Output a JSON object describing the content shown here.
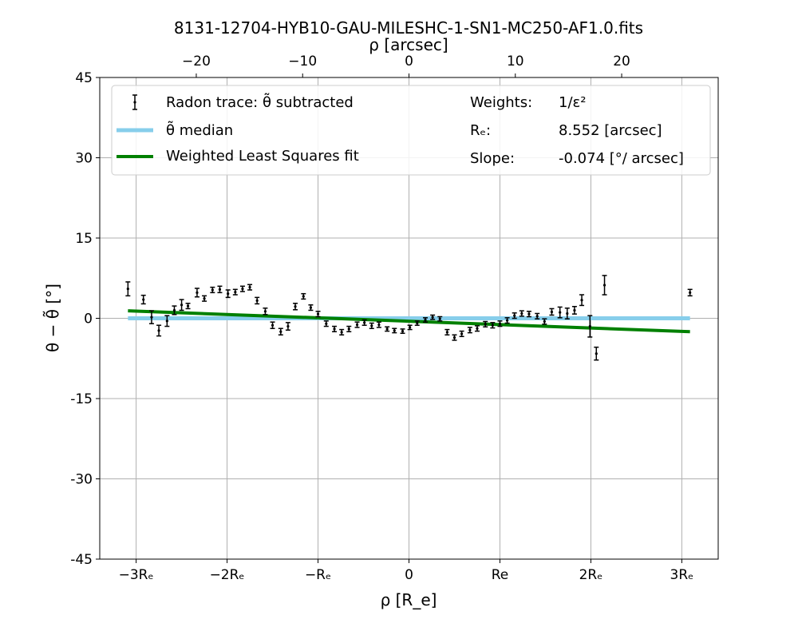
{
  "chart_data": {
    "type": "scatter",
    "title": "8131-12704-HYB10-GAU-MILESHC-1-SN1-MC250-AF1.0.fits",
    "xlabel": "ρ [R_e]",
    "xlabel_top": "ρ [arcsec]",
    "ylabel": "θ − θ̃ [°]",
    "xlim": [
      -3.4,
      3.4
    ],
    "ylim": [
      -45,
      45
    ],
    "y_ticks": [
      45,
      30,
      15,
      0,
      -15,
      -30,
      -45
    ],
    "y_tick_labels": [
      "45",
      "30",
      "15",
      "0",
      "-15",
      "-30",
      "-45"
    ],
    "x_ticks": [
      -3,
      -2,
      -1,
      0,
      1,
      2,
      3
    ],
    "x_tick_labels": [
      "−3Rₑ",
      "−2Rₑ",
      "−Rₑ",
      "0",
      "Re",
      "2Rₑ",
      "3Rₑ"
    ],
    "x_top_ticks_arcsec": [
      -20,
      -10,
      0,
      10,
      20
    ],
    "x_top_tick_labels": [
      "−20",
      "−10",
      "0",
      "10",
      "20"
    ],
    "grid": true,
    "legend_placement": "top",
    "legend": {
      "trace_label": "Radon trace: θ̃ subtracted",
      "median_label": "θ̃ median",
      "fit_label": "Weighted Least Squares fit",
      "weights_label": "Weights:",
      "weights_value": "1/ε²",
      "re_label": "Rₑ:",
      "re_value": "8.552 [arcsec]",
      "slope_label": "Slope:",
      "slope_value": "-0.074 [°/ arcsec]"
    },
    "colors": {
      "points": "#000000",
      "median": "#87ceeb",
      "fit": "#008000",
      "grid": "#b0b0b0"
    },
    "re_arcsec": 8.552,
    "median": {
      "x_range": [
        -3.09,
        3.09
      ],
      "y": 0
    },
    "fit": {
      "x_range": [
        -3.09,
        3.09
      ],
      "y": [
        1.4,
        -2.5
      ]
    },
    "series": [
      {
        "name": "Radon trace: θ̃ subtracted",
        "points": [
          {
            "x": -3.09,
            "y": 5.5,
            "err": 1.3
          },
          {
            "x": -2.92,
            "y": 3.5,
            "err": 0.8
          },
          {
            "x": -2.83,
            "y": 0.2,
            "err": 1.2
          },
          {
            "x": -2.75,
            "y": -2.3,
            "err": 1.0
          },
          {
            "x": -2.66,
            "y": -0.5,
            "err": 1.0
          },
          {
            "x": -2.58,
            "y": 1.5,
            "err": 0.8
          },
          {
            "x": -2.5,
            "y": 2.5,
            "err": 1.0
          },
          {
            "x": -2.43,
            "y": 2.3,
            "err": 0.5
          },
          {
            "x": -2.33,
            "y": 4.8,
            "err": 0.8
          },
          {
            "x": -2.25,
            "y": 3.7,
            "err": 0.5
          },
          {
            "x": -2.16,
            "y": 5.3,
            "err": 0.5
          },
          {
            "x": -2.08,
            "y": 5.4,
            "err": 0.6
          },
          {
            "x": -1.99,
            "y": 4.6,
            "err": 0.7
          },
          {
            "x": -1.91,
            "y": 4.9,
            "err": 0.5
          },
          {
            "x": -1.83,
            "y": 5.5,
            "err": 0.5
          },
          {
            "x": -1.75,
            "y": 5.8,
            "err": 0.5
          },
          {
            "x": -1.67,
            "y": 3.3,
            "err": 0.6
          },
          {
            "x": -1.58,
            "y": 1.3,
            "err": 0.6
          },
          {
            "x": -1.5,
            "y": -1.3,
            "err": 0.6
          },
          {
            "x": -1.41,
            "y": -2.5,
            "err": 0.6
          },
          {
            "x": -1.33,
            "y": -1.5,
            "err": 0.7
          },
          {
            "x": -1.25,
            "y": 2.2,
            "err": 0.6
          },
          {
            "x": -1.16,
            "y": 4.1,
            "err": 0.5
          },
          {
            "x": -1.08,
            "y": 2.0,
            "err": 0.5
          },
          {
            "x": -1.0,
            "y": 0.8,
            "err": 0.5
          },
          {
            "x": -0.91,
            "y": -1.0,
            "err": 0.5
          },
          {
            "x": -0.82,
            "y": -2.0,
            "err": 0.5
          },
          {
            "x": -0.74,
            "y": -2.6,
            "err": 0.5
          },
          {
            "x": -0.66,
            "y": -2.0,
            "err": 0.5
          },
          {
            "x": -0.57,
            "y": -1.2,
            "err": 0.5
          },
          {
            "x": -0.49,
            "y": -0.8,
            "err": 0.5
          },
          {
            "x": -0.41,
            "y": -1.4,
            "err": 0.5
          },
          {
            "x": -0.33,
            "y": -1.2,
            "err": 0.5
          },
          {
            "x": -0.24,
            "y": -2.0,
            "err": 0.4
          },
          {
            "x": -0.16,
            "y": -2.3,
            "err": 0.4
          },
          {
            "x": -0.07,
            "y": -2.4,
            "err": 0.4
          },
          {
            "x": 0.01,
            "y": -1.7,
            "err": 0.4
          },
          {
            "x": 0.09,
            "y": -0.9,
            "err": 0.4
          },
          {
            "x": 0.18,
            "y": -0.3,
            "err": 0.4
          },
          {
            "x": 0.26,
            "y": 0.2,
            "err": 0.4
          },
          {
            "x": 0.34,
            "y": -0.1,
            "err": 0.4
          },
          {
            "x": 0.42,
            "y": -2.6,
            "err": 0.5
          },
          {
            "x": 0.5,
            "y": -3.6,
            "err": 0.5
          },
          {
            "x": 0.58,
            "y": -2.9,
            "err": 0.5
          },
          {
            "x": 0.67,
            "y": -2.2,
            "err": 0.5
          },
          {
            "x": 0.75,
            "y": -1.9,
            "err": 0.5
          },
          {
            "x": 0.84,
            "y": -1.1,
            "err": 0.5
          },
          {
            "x": 0.92,
            "y": -1.3,
            "err": 0.5
          },
          {
            "x": 1.0,
            "y": -1.0,
            "err": 0.5
          },
          {
            "x": 1.08,
            "y": -0.4,
            "err": 0.5
          },
          {
            "x": 1.16,
            "y": 0.5,
            "err": 0.5
          },
          {
            "x": 1.24,
            "y": 0.9,
            "err": 0.5
          },
          {
            "x": 1.32,
            "y": 0.8,
            "err": 0.5
          },
          {
            "x": 1.41,
            "y": 0.4,
            "err": 0.5
          },
          {
            "x": 1.49,
            "y": -0.6,
            "err": 0.5
          },
          {
            "x": 1.57,
            "y": 1.2,
            "err": 0.6
          },
          {
            "x": 1.66,
            "y": 1.1,
            "err": 1.0
          },
          {
            "x": 1.74,
            "y": 0.9,
            "err": 1.0
          },
          {
            "x": 1.82,
            "y": 1.5,
            "err": 0.7
          },
          {
            "x": 1.9,
            "y": 3.4,
            "err": 1.0
          },
          {
            "x": 1.99,
            "y": -1.5,
            "err": 2.0
          },
          {
            "x": 2.06,
            "y": -6.6,
            "err": 1.2
          },
          {
            "x": 2.15,
            "y": 6.2,
            "err": 1.8
          },
          {
            "x": 3.09,
            "y": 4.8,
            "err": 0.6
          }
        ]
      }
    ]
  }
}
